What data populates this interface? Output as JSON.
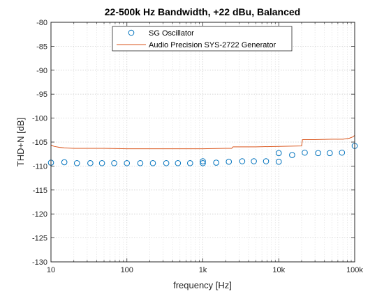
{
  "chart_data": {
    "type": "scatter",
    "title": "22-500k Hz Bandwidth, +22 dBu, Balanced",
    "xlabel": "frequency [Hz]",
    "ylabel": "THD+N [dB]",
    "x_scale": "log",
    "xlim": [
      10,
      100000
    ],
    "ylim": [
      -130,
      -80
    ],
    "grid": true,
    "legend_position": "top-center",
    "x_ticks": [
      {
        "value": 10,
        "label": "10"
      },
      {
        "value": 100,
        "label": "100"
      },
      {
        "value": 1000,
        "label": "1k"
      },
      {
        "value": 10000,
        "label": "10k"
      },
      {
        "value": 100000,
        "label": "100k"
      }
    ],
    "y_ticks": [
      -80,
      -85,
      -90,
      -95,
      -100,
      -105,
      -110,
      -115,
      -120,
      -125,
      -130
    ],
    "series": [
      {
        "name": "SG Oscillator",
        "style": "markers",
        "marker": "circle",
        "color": "#0072BD",
        "x": [
          10,
          15,
          22,
          33,
          47,
          68,
          100,
          150,
          220,
          330,
          470,
          680,
          1000,
          1000,
          1500,
          2200,
          3300,
          4700,
          6800,
          10000,
          10000,
          15000,
          22000,
          33000,
          47000,
          68000,
          100000
        ],
        "y": [
          -109.3,
          -109.2,
          -109.4,
          -109.4,
          -109.4,
          -109.4,
          -109.4,
          -109.4,
          -109.4,
          -109.4,
          -109.4,
          -109.4,
          -109.4,
          -109.0,
          -109.3,
          -109.1,
          -109.0,
          -109.0,
          -109.0,
          -109.1,
          -107.3,
          -107.7,
          -107.2,
          -107.3,
          -107.3,
          -107.2,
          -105.8
        ]
      },
      {
        "name": "Audio Precision SYS-2722 Generator",
        "style": "line",
        "color": "#D95319",
        "x": [
          10,
          11,
          13,
          15,
          20,
          30,
          50,
          100,
          200,
          500,
          1000,
          2000,
          2400,
          2500,
          5000,
          10000,
          20000,
          20500,
          21000,
          30000,
          50000,
          70000,
          85000,
          95000,
          100000
        ],
        "y": [
          -105.6,
          -105.9,
          -106.1,
          -106.2,
          -106.3,
          -106.3,
          -106.3,
          -106.4,
          -106.4,
          -106.4,
          -106.4,
          -106.3,
          -106.3,
          -106.0,
          -106.0,
          -105.9,
          -105.8,
          -104.5,
          -104.5,
          -104.5,
          -104.4,
          -104.4,
          -104.2,
          -103.9,
          -103.6
        ]
      }
    ]
  }
}
